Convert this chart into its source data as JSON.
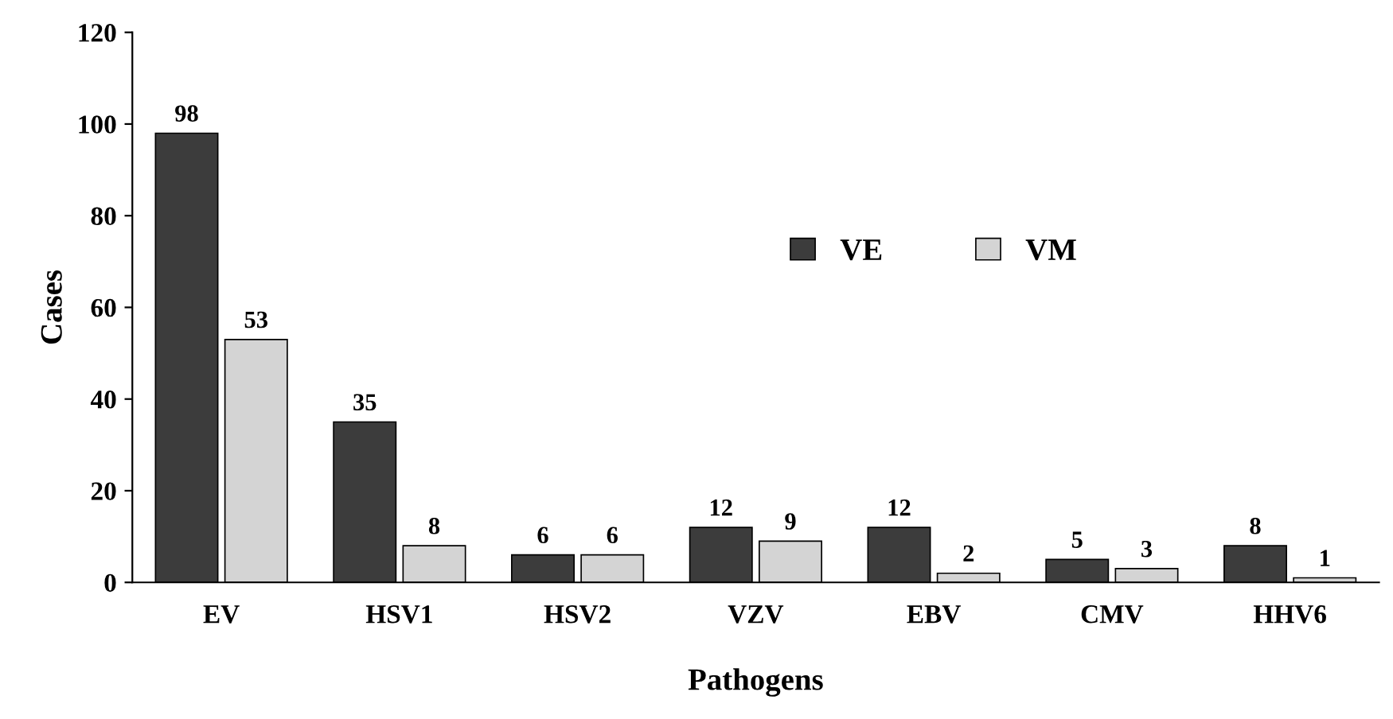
{
  "chart_data": {
    "type": "bar",
    "xlabel": "Pathogens",
    "ylabel": "Cases",
    "categories": [
      "EV",
      "HSV1",
      "HSV2",
      "VZV",
      "EBV",
      "CMV",
      "HHV6"
    ],
    "series": [
      {
        "name": "VE",
        "color": "#3c3c3c",
        "values": [
          98,
          35,
          6,
          12,
          12,
          5,
          8
        ]
      },
      {
        "name": "VM",
        "color": "#d4d4d4",
        "values": [
          53,
          8,
          6,
          9,
          2,
          3,
          1
        ]
      }
    ],
    "ylim": [
      0,
      120
    ],
    "yticks": [
      0,
      20,
      40,
      60,
      80,
      100,
      120
    ],
    "grid": false,
    "legend": "right",
    "data_labels": true
  }
}
